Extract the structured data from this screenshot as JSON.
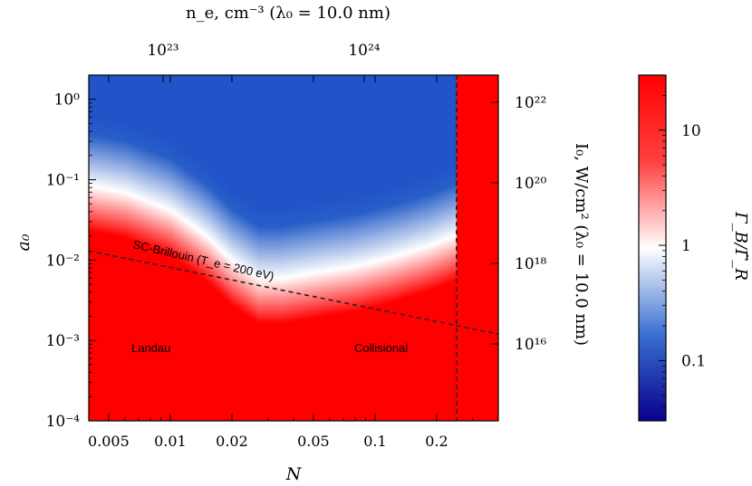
{
  "top_axis": {
    "label": "n_e, cm⁻³ (λ₀ = 10.0 nm)",
    "ticks": [
      "10²³",
      "10²⁴"
    ]
  },
  "right_axis": {
    "label": "I₀, W/cm² (λ₀ = 10.0 nm)",
    "ticks": [
      "10²²",
      "10²⁰",
      "10¹⁸",
      "10¹⁶"
    ]
  },
  "colorbar": {
    "label": "Γ_B/Γ̃_R",
    "ticks": [
      "10",
      "1",
      "0.1"
    ]
  },
  "annotations": {
    "sc_brillouin": "SC-Brillouin (T_e = 200 eV)",
    "landau": "Landau",
    "collisional": "Collisional"
  },
  "colors": {
    "high": "#ff0000",
    "mid": "#ffffff",
    "low": "#08008c"
  },
  "chart_data": {
    "type": "heatmap",
    "xlabel": "N",
    "ylabel": "a₀",
    "x_scale": "log",
    "y_scale": "log",
    "xlim": [
      0.004,
      0.4
    ],
    "ylim": [
      0.0001,
      2.0
    ],
    "x_ticks": [
      {
        "value": 0.005,
        "label": "0.005"
      },
      {
        "value": 0.01,
        "label": "0.01"
      },
      {
        "value": 0.02,
        "label": "0.02"
      },
      {
        "value": 0.05,
        "label": "0.05"
      },
      {
        "value": 0.1,
        "label": "0.1"
      },
      {
        "value": 0.2,
        "label": "0.2"
      }
    ],
    "y_ticks": [
      {
        "value": 1,
        "label": "10⁰"
      },
      {
        "value": 0.1,
        "label": "10⁻¹"
      },
      {
        "value": 0.01,
        "label": "10⁻²"
      },
      {
        "value": 0.001,
        "label": "10⁻³"
      },
      {
        "value": 0.0001,
        "label": "10⁻⁴"
      }
    ],
    "colorbar_range": [
      0.03,
      30
    ],
    "boundary_white_contour": [
      [
        0.004,
        0.085
      ],
      [
        0.006,
        0.07
      ],
      [
        0.01,
        0.042
      ],
      [
        0.015,
        0.02
      ],
      [
        0.02,
        0.01
      ],
      [
        0.027,
        0.006
      ],
      [
        0.035,
        0.006
      ],
      [
        0.05,
        0.007
      ],
      [
        0.08,
        0.0085
      ],
      [
        0.12,
        0.011
      ],
      [
        0.18,
        0.015
      ],
      [
        0.24,
        0.02
      ]
    ],
    "sc_brillouin_line": [
      [
        0.004,
        0.013
      ],
      [
        0.4,
        0.0012
      ]
    ],
    "vertical_cutoff_N": 0.25
  }
}
